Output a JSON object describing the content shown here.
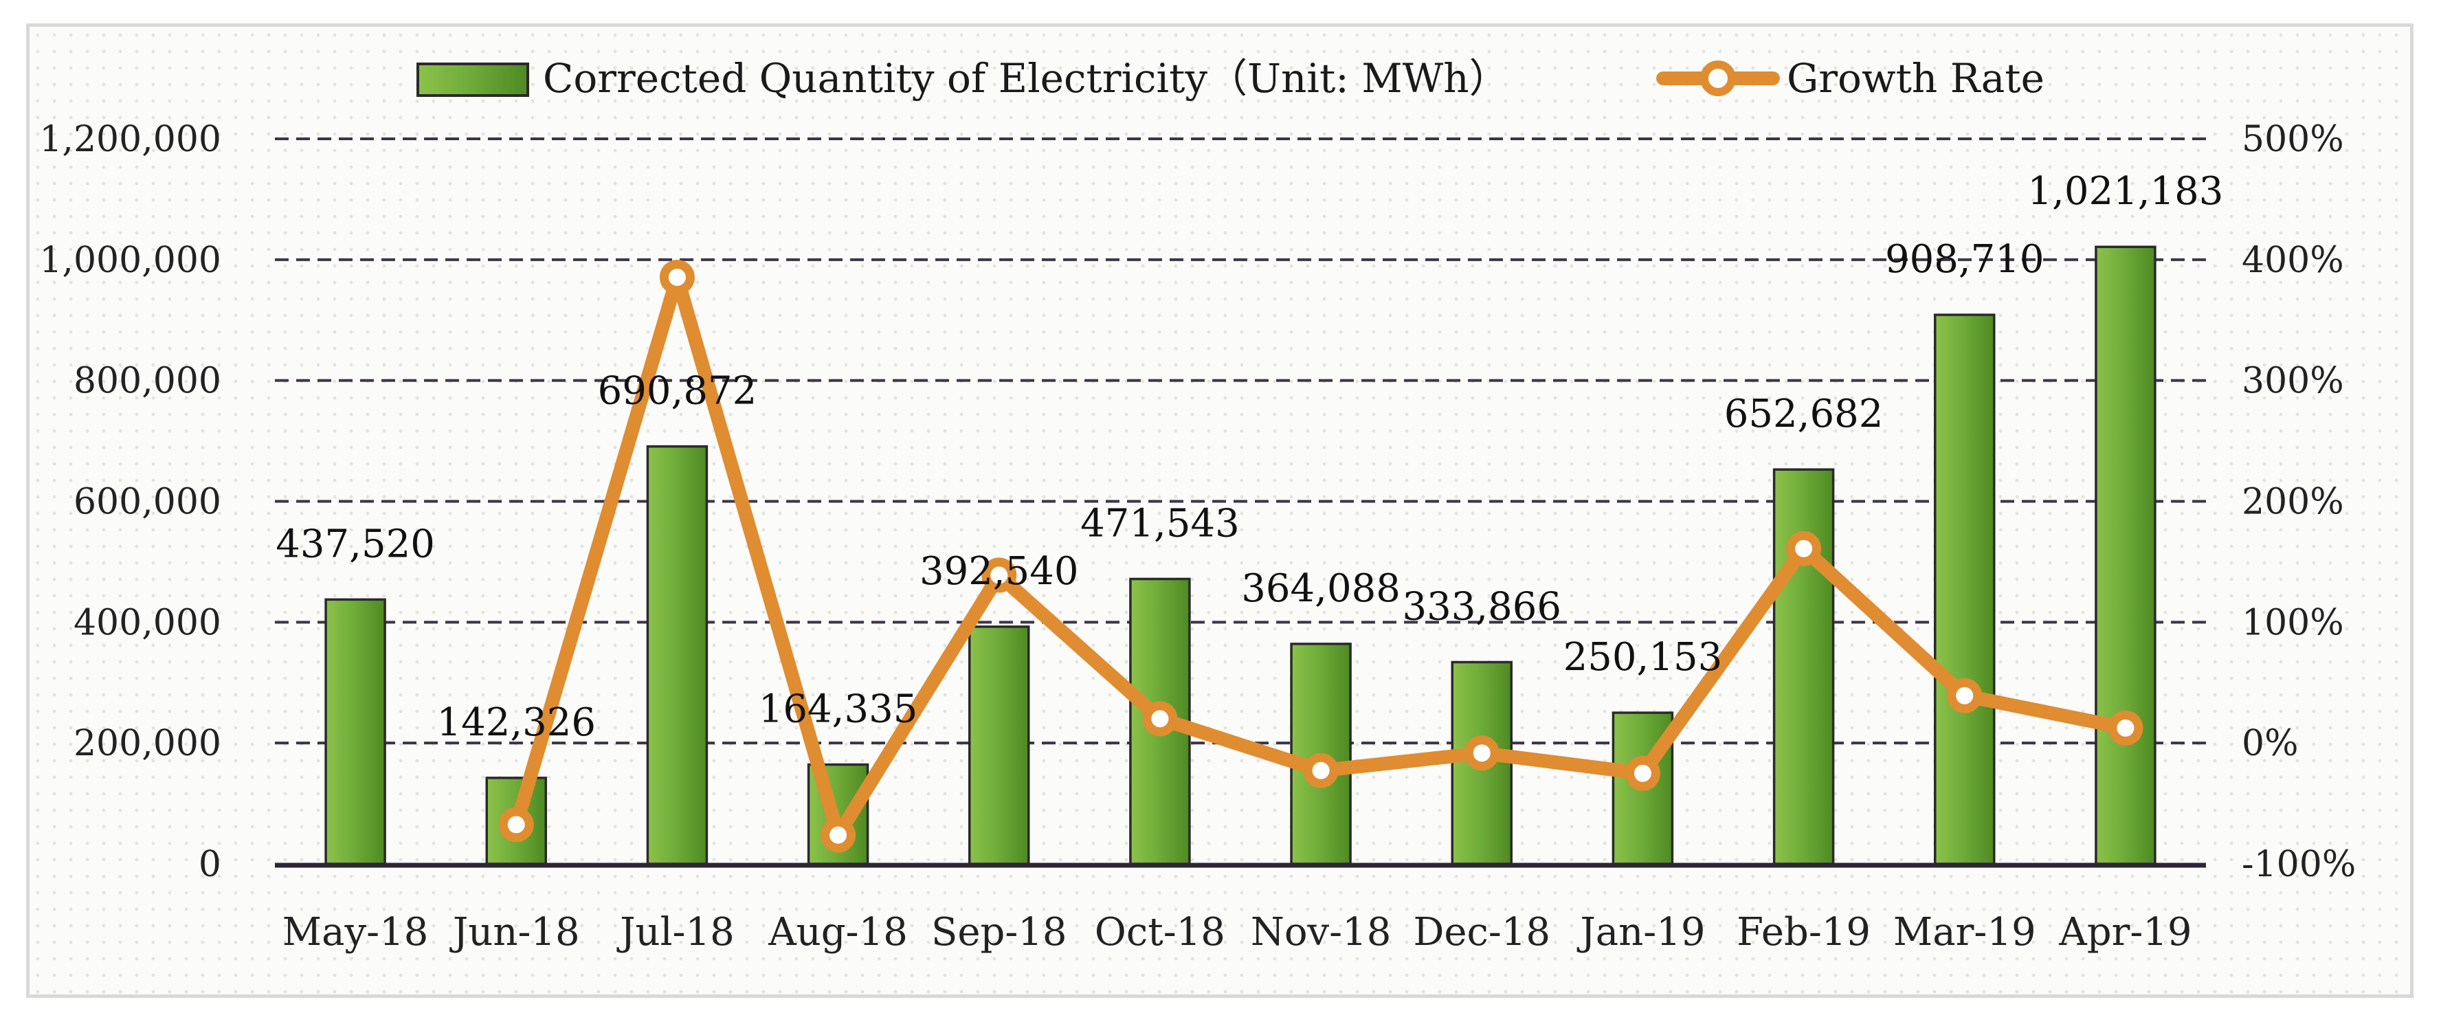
{
  "chart_data": {
    "type": "bar+line",
    "categories": [
      "May-18",
      "Jun-18",
      "Jul-18",
      "Aug-18",
      "Sep-18",
      "Oct-18",
      "Nov-18",
      "Dec-18",
      "Jan-19",
      "Feb-19",
      "Mar-19",
      "Apr-19"
    ],
    "series": [
      {
        "name": "Corrected Quantity of Electricity（Unit: MWh）",
        "type": "bar",
        "axis": "left",
        "values": [
          437520,
          142326,
          690872,
          164335,
          392540,
          471543,
          364088,
          333866,
          250153,
          652682,
          908710,
          1021183
        ],
        "labels": [
          "437,520",
          "142,326",
          "690,872",
          "164,335",
          "392,540",
          "471,543",
          "364,088",
          "333,866",
          "250,153",
          "652,682",
          "908,710",
          "1,021,183"
        ]
      },
      {
        "name": "Growth Rate",
        "type": "line",
        "axis": "right",
        "values": [
          null,
          -67.5,
          385.4,
          -76.2,
          138.9,
          20.1,
          -22.8,
          -8.3,
          -25.1,
          160.9,
          39.2,
          12.4
        ]
      }
    ],
    "y_left": {
      "min": 0,
      "max": 1200000,
      "ticks": [
        0,
        200000,
        400000,
        600000,
        800000,
        1000000,
        1200000
      ],
      "tick_labels": [
        "0",
        "200,000",
        "400,000",
        "600,000",
        "800,000",
        "1,000,000",
        "1,200,000"
      ]
    },
    "y_right": {
      "min": -100,
      "max": 500,
      "ticks": [
        -100,
        0,
        100,
        200,
        300,
        400,
        500
      ],
      "tick_labels": [
        "-100%",
        "0%",
        "100%",
        "200%",
        "300%",
        "400%",
        "500%"
      ]
    },
    "legend": {
      "position": "top",
      "bar_label": "Corrected Quantity of Electricity（Unit: MWh）",
      "line_label": "Growth Rate"
    },
    "colors": {
      "bar": "#70ad3a",
      "bar_light": "#8cc24a",
      "bar_dark": "#4e8a22",
      "bar_border": "#2a2a2a",
      "line": "#e08c30",
      "grid": "#3d3545",
      "axis": "#2e2634",
      "marker_fill": "#ffffff"
    },
    "grid": true
  }
}
